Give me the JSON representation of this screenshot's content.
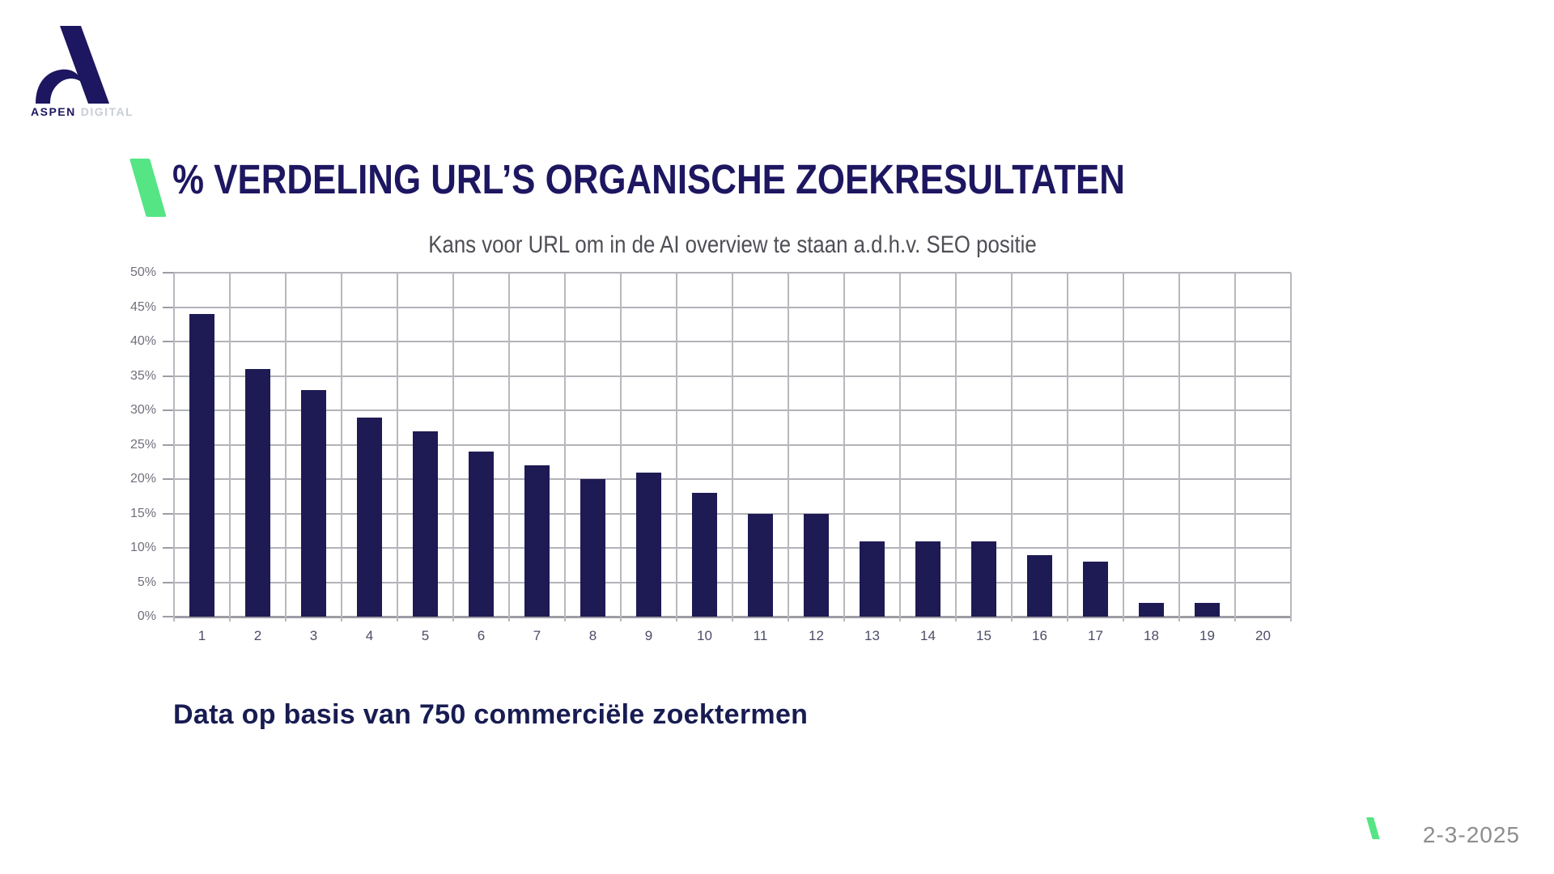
{
  "logo": {
    "brand_bold": "ASPEN",
    "brand_light": "DIGITAL",
    "color": "#1d1660"
  },
  "header": {
    "title": "% VERDELING URL’S ORGANISCHE ZOEKRESULTATEN",
    "accent_color": "#55e584"
  },
  "chart_data": {
    "type": "bar",
    "title": "Kans voor URL om in de AI overview te staan a.d.h.v. SEO positie",
    "categories": [
      "1",
      "2",
      "3",
      "4",
      "5",
      "6",
      "7",
      "8",
      "9",
      "10",
      "11",
      "12",
      "13",
      "14",
      "15",
      "16",
      "17",
      "18",
      "19",
      "20"
    ],
    "values": [
      44,
      36,
      33,
      29,
      27,
      24,
      22,
      20,
      21,
      18,
      15,
      15,
      11,
      11,
      11,
      9,
      8,
      2,
      2,
      0
    ],
    "value_unit": "%",
    "xlabel": "",
    "ylabel": "",
    "ylim": [
      0,
      50
    ],
    "ytick_labels": [
      "50%",
      "45%",
      "40%",
      "35%",
      "30%",
      "25%",
      "20%",
      "15%",
      "10%",
      "5%",
      "0%"
    ],
    "grid": "horizontal and vertical gridlines, gray",
    "legend": "none",
    "bar_color": "#1e1a54"
  },
  "footnote": "Data op basis van 750 commerciële zoektermen",
  "footer": {
    "date": "2-3-2025",
    "accent_color": "#55e584"
  }
}
